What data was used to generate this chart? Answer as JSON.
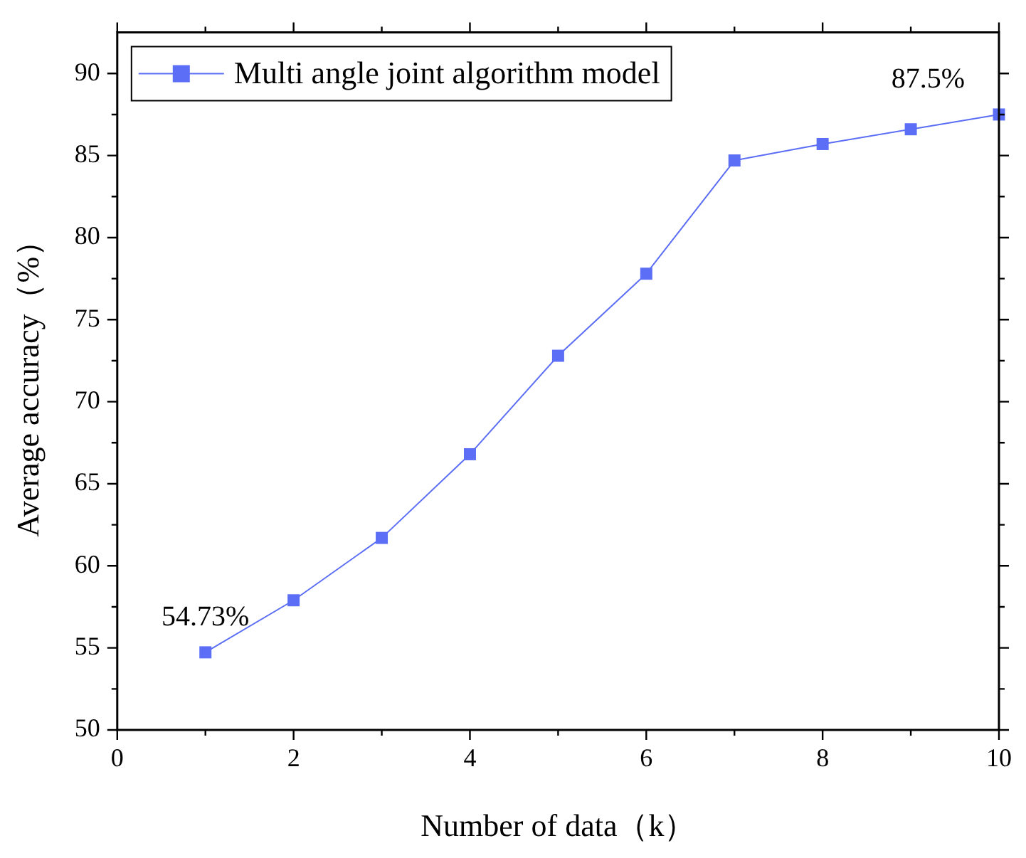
{
  "chart_data": {
    "type": "line",
    "xlabel": "Number of data（k）",
    "ylabel": "Average accuracy（%）",
    "x": [
      1,
      2,
      3,
      4,
      5,
      6,
      7,
      8,
      9,
      10
    ],
    "series": [
      {
        "name": "Multi angle joint algorithm model",
        "color": "#5b6ef5",
        "values": [
          54.73,
          57.9,
          61.7,
          66.8,
          72.8,
          77.8,
          84.7,
          85.7,
          86.6,
          87.5
        ]
      }
    ],
    "xlim": [
      0,
      10
    ],
    "xticks": [
      0,
      2,
      4,
      6,
      8,
      10
    ],
    "ylim": [
      50,
      92.5
    ],
    "yticks": [
      50,
      55,
      60,
      65,
      70,
      75,
      80,
      85,
      90
    ],
    "grid": false,
    "legend": "top left",
    "marker": "square",
    "line_style": "solid",
    "annotations": [
      {
        "text": "54.73%",
        "x": 1,
        "y": 54.73
      },
      {
        "text": "87.5%",
        "x": 10,
        "y": 87.5
      }
    ]
  }
}
